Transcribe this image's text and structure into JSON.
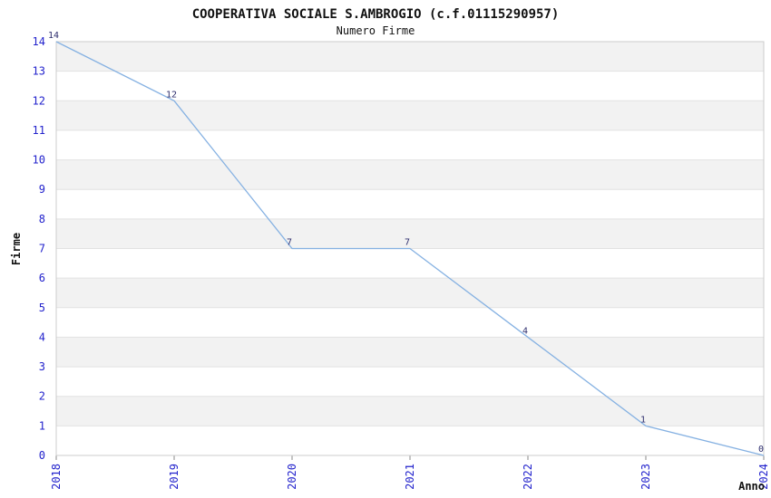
{
  "chart_data": {
    "type": "line",
    "title": "COOPERATIVA SOCIALE S.AMBROGIO (c.f.01115290957)",
    "subtitle": "Numero Firme",
    "xlabel": "Anno",
    "ylabel": "Firme",
    "x": [
      "2018",
      "2019",
      "2020",
      "2021",
      "2022",
      "2023",
      "2024"
    ],
    "series": [
      {
        "name": "Numero Firme",
        "values": [
          14,
          12,
          7,
          7,
          4,
          1,
          0
        ]
      }
    ],
    "data_labels": [
      "14",
      "12",
      "7",
      "7",
      "4",
      "1",
      "0"
    ],
    "ylim": [
      0,
      14
    ],
    "ytick_step": 1,
    "xtick_rotation": -90,
    "grid": true,
    "striped_bands": true,
    "legend": false,
    "colors": {
      "line": "#85b1e2",
      "tick_label": "#2222cc",
      "data_label": "#2e2e6e",
      "stripe": "#f2f2f2",
      "gridline": "#e2e2e2",
      "border": "#cccccc",
      "tick_mark": "#888888",
      "text": "#111111",
      "background": "#ffffff"
    }
  }
}
